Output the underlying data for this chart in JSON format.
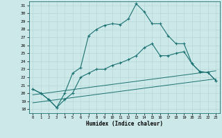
{
  "xlabel": "Humidex (Indice chaleur)",
  "bg_color": "#cce8e8",
  "grid_color": "#b0d4d4",
  "line_color": "#1a7070",
  "xlim": [
    -0.5,
    23.5
  ],
  "ylim": [
    17.5,
    31.5
  ],
  "yticks": [
    18,
    19,
    20,
    21,
    22,
    23,
    24,
    25,
    26,
    27,
    28,
    29,
    30,
    31
  ],
  "xticks": [
    0,
    1,
    2,
    3,
    4,
    5,
    6,
    7,
    8,
    9,
    10,
    11,
    12,
    13,
    14,
    15,
    16,
    17,
    18,
    19,
    20,
    21,
    22,
    23
  ],
  "line1_x": [
    0,
    1,
    2,
    3,
    4,
    5,
    6,
    7,
    8,
    9,
    10,
    11,
    12,
    13,
    14,
    15,
    16,
    17,
    18,
    19,
    20,
    21,
    22,
    23
  ],
  "line1_y": [
    20.5,
    20.0,
    19.2,
    18.2,
    20.0,
    22.5,
    23.2,
    27.2,
    28.0,
    28.5,
    28.7,
    28.6,
    29.3,
    31.2,
    30.2,
    28.7,
    28.7,
    27.2,
    26.2,
    26.2,
    23.7,
    22.7,
    22.6,
    21.6
  ],
  "line2_x": [
    0,
    1,
    2,
    3,
    4,
    5,
    6,
    7,
    8,
    9,
    10,
    11,
    12,
    13,
    14,
    15,
    16,
    17,
    18,
    19,
    20,
    21,
    22,
    23
  ],
  "line2_y": [
    20.5,
    20.0,
    19.2,
    18.2,
    19.2,
    20.0,
    22.0,
    22.5,
    23.0,
    23.0,
    23.5,
    23.8,
    24.2,
    24.7,
    25.7,
    26.2,
    24.7,
    24.7,
    25.0,
    25.2,
    23.7,
    22.7,
    22.6,
    21.6
  ],
  "line3_x": [
    0,
    23
  ],
  "line3_y": [
    19.8,
    22.8
  ],
  "line4_x": [
    0,
    23
  ],
  "line4_y": [
    18.8,
    21.8
  ]
}
